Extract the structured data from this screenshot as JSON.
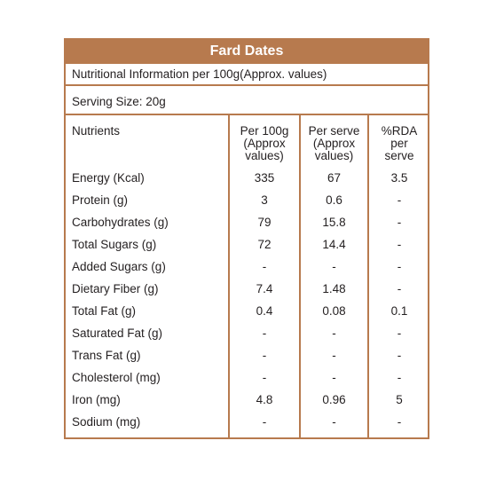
{
  "title": "Fard Dates",
  "subtitle": "Nutritional Information per 100g(Approx. values)",
  "serving": "Serving Size:  20g",
  "headers": {
    "nutrients": "Nutrients",
    "per100g": [
      "Per 100g",
      "(Approx",
      "values)"
    ],
    "perserve": [
      "Per serve",
      "(Approx",
      "values)"
    ],
    "rda": [
      "%RDA",
      "per",
      "serve"
    ]
  },
  "rows": [
    {
      "name": "Energy (Kcal)",
      "per100g": "335",
      "perserve": "67",
      "rda": "3.5"
    },
    {
      "name": "Protein (g)",
      "per100g": "3",
      "perserve": "0.6",
      "rda": "-"
    },
    {
      "name": "Carbohydrates (g)",
      "per100g": "79",
      "perserve": "15.8",
      "rda": "-"
    },
    {
      "name": "Total Sugars (g)",
      "per100g": "72",
      "perserve": "14.4",
      "rda": "-"
    },
    {
      "name": "Added Sugars (g)",
      "per100g": "-",
      "perserve": "-",
      "rda": "-"
    },
    {
      "name": "Dietary Fiber (g)",
      "per100g": "7.4",
      "perserve": "1.48",
      "rda": "-"
    },
    {
      "name": "Total Fat (g)",
      "per100g": "0.4",
      "perserve": "0.08",
      "rda": "0.1"
    },
    {
      "name": "Saturated Fat (g)",
      "per100g": "-",
      "perserve": "-",
      "rda": "-"
    },
    {
      "name": "Trans Fat (g)",
      "per100g": "-",
      "perserve": "-",
      "rda": "-"
    },
    {
      "name": "Cholesterol (mg)",
      "per100g": "-",
      "perserve": "-",
      "rda": "-"
    },
    {
      "name": "Iron (mg)",
      "per100g": "4.8",
      "perserve": "0.96",
      "rda": "5"
    },
    {
      "name": "Sodium (mg)",
      "per100g": "-",
      "perserve": "-",
      "rda": "-"
    }
  ],
  "colors": {
    "accent": "#b77a4e",
    "text": "#231f20",
    "title_text": "#ffffff"
  }
}
